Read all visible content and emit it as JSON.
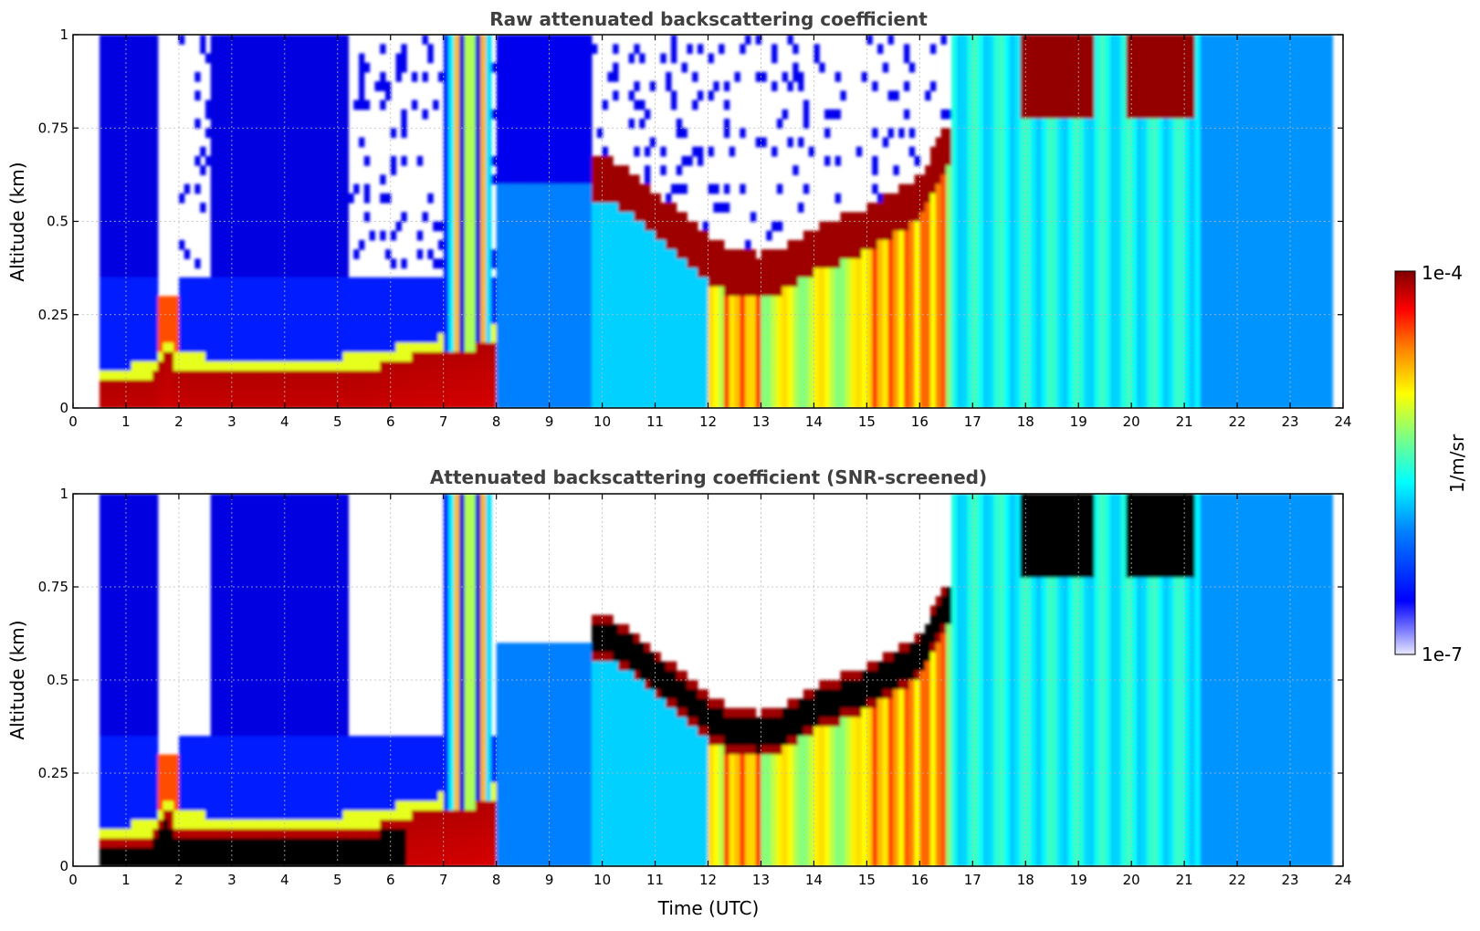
{
  "chart_data": [
    {
      "type": "heatmap",
      "title": "Raw attenuated backscattering coefficient",
      "xlabel": "",
      "ylabel": "Altitude (km)",
      "xlim": [
        0,
        24
      ],
      "ylim": [
        0,
        1
      ],
      "x_ticks": [
        "0",
        "1",
        "2",
        "3",
        "4",
        "5",
        "6",
        "7",
        "8",
        "9",
        "10",
        "11",
        "12",
        "13",
        "14",
        "15",
        "16",
        "17",
        "18",
        "19",
        "20",
        "21",
        "22",
        "23",
        "24"
      ],
      "y_ticks": [
        "0",
        "0.25",
        "0.5",
        "0.75",
        "1"
      ],
      "grid": true,
      "features": {
        "aerosol_layer_top_km": [
          [
            0.3,
            0.06
          ],
          [
            1.5,
            0.08
          ],
          [
            1.8,
            0.15
          ],
          [
            2.0,
            0.1
          ],
          [
            4.0,
            0.09
          ],
          [
            5.5,
            0.1
          ],
          [
            6.5,
            0.14
          ],
          [
            7.5,
            0.16
          ],
          [
            8.0,
            0.18
          ]
        ],
        "cloud_base_km": [
          [
            10.0,
            0.62
          ],
          [
            10.5,
            0.58
          ],
          [
            11.0,
            0.52
          ],
          [
            11.5,
            0.46
          ],
          [
            12.0,
            0.4
          ],
          [
            12.5,
            0.36
          ],
          [
            13.0,
            0.35
          ],
          [
            13.5,
            0.38
          ],
          [
            14.0,
            0.42
          ],
          [
            14.5,
            0.45
          ],
          [
            15.0,
            0.48
          ],
          [
            15.5,
            0.52
          ],
          [
            16.0,
            0.56
          ],
          [
            16.5,
            0.7
          ]
        ],
        "upper_cloud_spans_h": [
          [
            17.9,
            19.3
          ],
          [
            19.9,
            21.2
          ]
        ],
        "precip_columns_h": [
          [
            7.0,
            7.9
          ],
          [
            12.3,
            13.0
          ],
          [
            15.0,
            16.5
          ]
        ]
      }
    },
    {
      "type": "heatmap",
      "title": "Attenuated backscattering coefficient (SNR-screened)",
      "xlabel": "Time (UTC)",
      "ylabel": "Altitude (km)",
      "xlim": [
        0,
        24
      ],
      "ylim": [
        0,
        1
      ],
      "x_ticks": [
        "0",
        "1",
        "2",
        "3",
        "4",
        "5",
        "6",
        "7",
        "8",
        "9",
        "10",
        "11",
        "12",
        "13",
        "14",
        "15",
        "16",
        "17",
        "18",
        "19",
        "20",
        "21",
        "22",
        "23",
        "24"
      ],
      "y_ticks": [
        "0",
        "0.25",
        "0.5",
        "0.75",
        "1"
      ],
      "grid": true
    }
  ],
  "colorbar": {
    "label": "1/m/sr",
    "max_label": "1e-4",
    "min_label": "1e-7",
    "range": [
      1e-07,
      0.0001
    ],
    "scale": "log",
    "colormap": "jet",
    "colors": [
      "#0000aa",
      "#0000ff",
      "#0080ff",
      "#00ffff",
      "#80ff80",
      "#ffff00",
      "#ff8000",
      "#ff0000",
      "#800000"
    ]
  }
}
